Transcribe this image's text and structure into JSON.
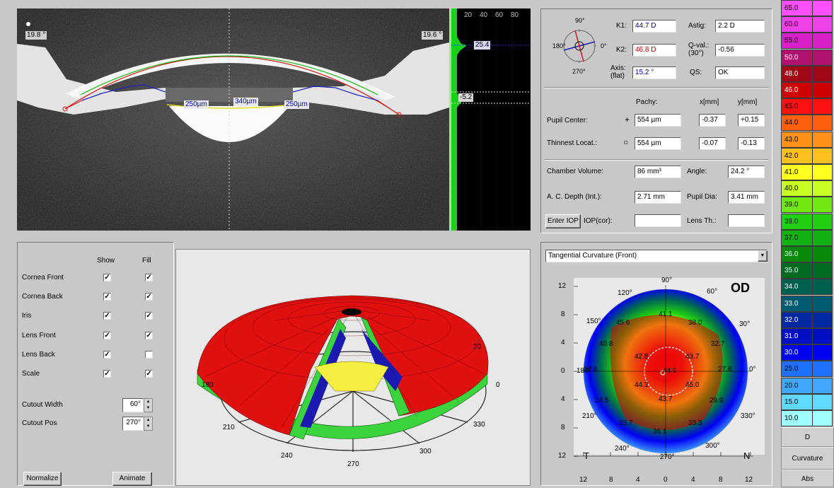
{
  "colors": {
    "panel_bg": "#c8c8c8",
    "cornea_front": "#d01818",
    "cornea_back": "#10b010",
    "iris": "#1a1ab0",
    "lens": "#e0e020",
    "k1_text": "#0000a0",
    "k2_text": "#c00000",
    "map_bg": "#e9e9e9"
  },
  "scheimpflug": {
    "angle_left": "19.8 °",
    "angle_right": "19.6 °",
    "thickness_left": "250µm",
    "thickness_center": "340µm",
    "thickness_right": "250µm"
  },
  "densitometry": {
    "ticks": [
      "20",
      "40",
      "60",
      "80"
    ],
    "marker_top": "25.4",
    "marker_bottom": "-5.2"
  },
  "keratometry": {
    "compass": {
      "top": "90°",
      "bottom": "270°",
      "left": "180°",
      "right": "0°"
    },
    "k1_label": "K1:",
    "k1_value": "44.7 D",
    "k2_label": "K2:",
    "k2_value": "46.8 D",
    "axis_label_1": "Axis:",
    "axis_label_2": "(flat)",
    "axis_value": "15.2 °",
    "astig_label": "Astig:",
    "astig_value": "2.2 D",
    "qval_label_1": "Q-val.:",
    "qval_label_2": "(30°)",
    "qval_value": "-0.56",
    "qs_label": "QS:",
    "qs_value": "OK"
  },
  "pachy": {
    "col_pachy": "Pachy:",
    "col_x": "x[mm]",
    "col_y": "y[mm]",
    "pupil_label": "Pupil Center:",
    "pupil_symbol": "+",
    "pupil_pachy": "554 µm",
    "pupil_x": "-0.37",
    "pupil_y": "+0.15",
    "thin_label": "Thinnest Locat.:",
    "thin_symbol": "○",
    "thin_pachy": "554 µm",
    "thin_x": "-0.07",
    "thin_y": "-0.13"
  },
  "chamber": {
    "volume_label": "Chamber Volume:",
    "volume_value": "86 mm³",
    "angle_label": "Angle:",
    "angle_value": "24.2 °",
    "depth_label": "A. C. Depth (Int.):",
    "depth_value": "2.71 mm",
    "pupil_dia_label": "Pupil Dia:",
    "pupil_dia_value": "3.41 mm",
    "enter_iop": "Enter IOP",
    "iop_label": "IOP(cor):",
    "iop_value": "",
    "lens_label": "Lens Th.:",
    "lens_value": ""
  },
  "display_options": {
    "show_header": "Show",
    "fill_header": "Fill",
    "rows": [
      {
        "label": "Cornea Front",
        "show": "✓",
        "fill": "✓"
      },
      {
        "label": "Cornea Back",
        "show": "✓",
        "fill": "✓"
      },
      {
        "label": "Iris",
        "show": "✓",
        "fill": "✓"
      },
      {
        "label": "Lens Front",
        "show": "✓",
        "fill": "✓"
      },
      {
        "label": "Lens Back",
        "show": "✓",
        "fill": ""
      },
      {
        "label": "Scale",
        "show": "✓",
        "fill": "✓"
      }
    ],
    "cutout_width_label": "Cutout Width",
    "cutout_width_value": "60°",
    "cutout_pos_label": "Cutout Pos",
    "cutout_pos_value": "270°",
    "normalize": "Normalize",
    "animate": "Animate"
  },
  "model3d": {
    "labels": {
      "l0": "0",
      "l30": "30",
      "l180": "180",
      "l210": "210",
      "l240": "240",
      "l270": "270",
      "l300": "300",
      "l330": "330"
    }
  },
  "topo": {
    "map_type": "Tangential Curvature (Front)",
    "eye": "OD",
    "left_T": "T",
    "right_N": "N",
    "y_ticks": [
      "12",
      "8",
      "4",
      "0",
      "4",
      "8",
      "12"
    ],
    "x_ticks": [
      "12",
      "8",
      "4",
      "0",
      "4",
      "8",
      "12"
    ],
    "angles": {
      "a90": "90°",
      "a60": "60°",
      "a30": "30°",
      "a0": "0°",
      "a330": "330°",
      "a300": "300°",
      "a270": "270°",
      "a240": "240°",
      "a210": "210°",
      "a180": "180°",
      "a150": "150°",
      "a120": "120°"
    },
    "values": {
      "v1": "41.1",
      "v2": "45.6",
      "v3": "38.0",
      "v4": "40.8",
      "v5": "32.7",
      "v6": "42.8",
      "v7": "43.7",
      "v8": "32.8",
      "v9": "44.9",
      "v10": "27.6",
      "v11": "44.3",
      "v12": "45.0",
      "v13": "34.5",
      "v14": "43.7",
      "v15": "29.9",
      "v16": "33.7",
      "v17": "33.3",
      "v18": "36.1"
    }
  },
  "color_scale": {
    "entries": [
      {
        "v": "65.0",
        "c": "#ff50ff"
      },
      {
        "v": "60.0",
        "c": "#f040e8"
      },
      {
        "v": "55.0",
        "c": "#d820c8"
      },
      {
        "v": "50.0",
        "c": "#b01070"
      },
      {
        "v": "48.0",
        "c": "#a00818"
      },
      {
        "v": "46.0",
        "c": "#d00000"
      },
      {
        "v": "45.0",
        "c": "#ff1010"
      },
      {
        "v": "44.0",
        "c": "#ff6010"
      },
      {
        "v": "43.0",
        "c": "#ff9018"
      },
      {
        "v": "42.0",
        "c": "#ffc020"
      },
      {
        "v": "41.0",
        "c": "#ffff20"
      },
      {
        "v": "40.0",
        "c": "#c8ff20"
      },
      {
        "v": "39.0",
        "c": "#70e810"
      },
      {
        "v": "38.0",
        "c": "#20d010"
      },
      {
        "v": "37.0",
        "c": "#10b010"
      },
      {
        "v": "36.0",
        "c": "#088a08"
      },
      {
        "v": "35.0",
        "c": "#006a20"
      },
      {
        "v": "34.0",
        "c": "#006050"
      },
      {
        "v": "33.0",
        "c": "#005a70"
      },
      {
        "v": "32.0",
        "c": "#0028a0"
      },
      {
        "v": "31.0",
        "c": "#0010c0"
      },
      {
        "v": "30.0",
        "c": "#0000f0"
      },
      {
        "v": "25.0",
        "c": "#2070ff"
      },
      {
        "v": "20.0",
        "c": "#40a8ff"
      },
      {
        "v": "15.0",
        "c": "#60d8ff"
      },
      {
        "v": "10.0",
        "c": "#a0ffff"
      }
    ],
    "unit": "D",
    "tab_curvature": "Curvature",
    "tab_abs": "Abs"
  }
}
